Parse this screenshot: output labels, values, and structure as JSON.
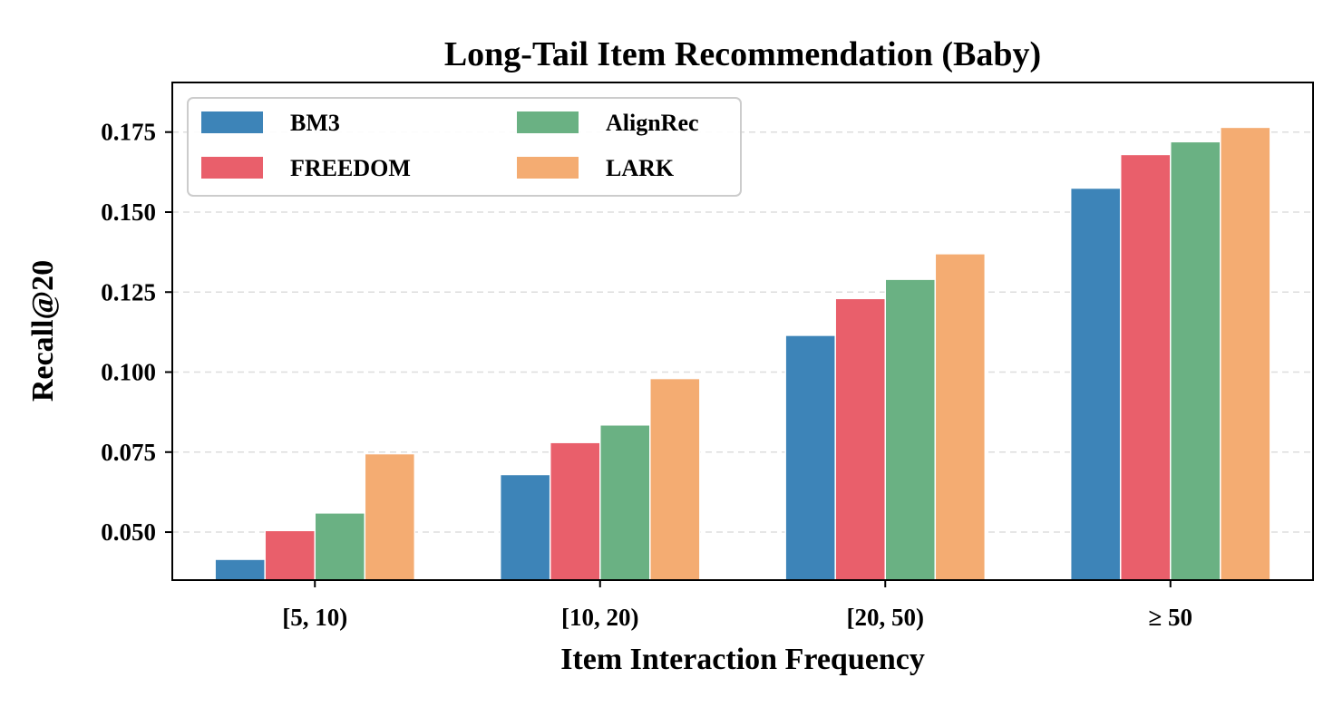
{
  "chart_data": {
    "type": "bar",
    "title": "Long-Tail Item Recommendation (Baby)",
    "xlabel": "Item Interaction Frequency",
    "ylabel": "Recall@20",
    "categories": [
      "[5, 10)",
      "[10, 20)",
      "[20, 50)",
      "≥ 50"
    ],
    "series": [
      {
        "name": "BM3",
        "color": "#3d84b8",
        "values": [
          0.0415,
          0.068,
          0.1115,
          0.1575
        ]
      },
      {
        "name": "FREEDOM",
        "color": "#e95f6b",
        "values": [
          0.0505,
          0.078,
          0.123,
          0.168
        ]
      },
      {
        "name": "AlignRec",
        "color": "#6ab183",
        "values": [
          0.056,
          0.0835,
          0.129,
          0.172
        ]
      },
      {
        "name": "LARK",
        "color": "#f4ac72",
        "values": [
          0.0745,
          0.098,
          0.137,
          0.1765
        ]
      }
    ],
    "ylim": [
      0.035,
      0.1905
    ],
    "yticks": [
      0.05,
      0.075,
      0.1,
      0.125,
      0.15,
      0.175
    ],
    "ytick_labels": [
      "0.050",
      "0.075",
      "0.100",
      "0.125",
      "0.150",
      "0.175"
    ],
    "grid": "y-dashed",
    "legend_position": "upper-left",
    "legend_columns": 2
  }
}
